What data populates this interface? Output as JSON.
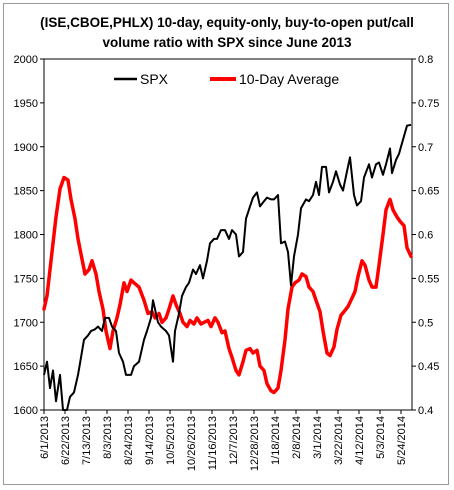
{
  "chart_data": {
    "type": "line",
    "title_lines": [
      "(ISE,CBOE,PHLX) 10-day, equity-only, buy-to-open put/call",
      "volume ratio with SPX since June 2013"
    ],
    "legend": [
      "SPX",
      "10-Day Average"
    ],
    "legend_position": "top",
    "grid": false,
    "colors": {
      "SPX": "#000000",
      "10-Day Average": "#ff0000"
    },
    "y_left": {
      "series": "SPX",
      "range": [
        1600,
        2000
      ],
      "ticks": [
        1600,
        1650,
        1700,
        1750,
        1800,
        1850,
        1900,
        1950,
        2000
      ],
      "tick_labels": [
        "1600",
        "1650",
        "1700",
        "1750",
        "1800",
        "1850",
        "1900",
        "1950",
        "2000"
      ]
    },
    "y_right": {
      "series": "10-Day Average",
      "range": [
        0.4,
        0.8
      ],
      "ticks": [
        0.4,
        0.45,
        0.5,
        0.55,
        0.6,
        0.65,
        0.7,
        0.75,
        0.8
      ],
      "tick_labels": [
        "0.4",
        "0.45",
        "0.5",
        "0.55",
        "0.6",
        "0.65",
        "0.7",
        "0.75",
        "0.8"
      ]
    },
    "x_axis": {
      "start": "6/1/2013",
      "end": "6/4/2014",
      "tick_labels": [
        "6/1/2013",
        "6/22/2013",
        "7/13/2013",
        "8/3/2013",
        "8/24/2013",
        "9/14/2013",
        "10/5/2013",
        "10/26/2013",
        "11/16/2013",
        "12/7/2013",
        "12/28/2013",
        "1/18/2014",
        "2/8/2014",
        "3/1/2014",
        "3/22/2014",
        "4/12/2014",
        "5/3/2014",
        "5/24/2014"
      ]
    },
    "series": [
      {
        "name": "SPX",
        "points": [
          [
            "6/1/2013",
            1640
          ],
          [
            "6/4/2013",
            1655
          ],
          [
            "6/7/2013",
            1625
          ],
          [
            "6/10/2013",
            1645
          ],
          [
            "6/13/2013",
            1610
          ],
          [
            "6/17/2013",
            1640
          ],
          [
            "6/20/2013",
            1600
          ],
          [
            "6/24/2013",
            1600
          ],
          [
            "6/27/2013",
            1615
          ],
          [
            "7/1/2013",
            1620
          ],
          [
            "7/5/2013",
            1640
          ],
          [
            "7/8/2013",
            1660
          ],
          [
            "7/11/2013",
            1680
          ],
          [
            "7/15/2013",
            1685
          ],
          [
            "7/18/2013",
            1690
          ],
          [
            "7/22/2013",
            1692
          ],
          [
            "7/25/2013",
            1695
          ],
          [
            "7/29/2013",
            1690
          ],
          [
            "8/1/2013",
            1705
          ],
          [
            "8/5/2013",
            1705
          ],
          [
            "8/8/2013",
            1695
          ],
          [
            "8/12/2013",
            1690
          ],
          [
            "8/15/2013",
            1665
          ],
          [
            "8/19/2013",
            1655
          ],
          [
            "8/22/2013",
            1640
          ],
          [
            "8/27/2013",
            1640
          ],
          [
            "8/30/2013",
            1650
          ],
          [
            "9/4/2013",
            1655
          ],
          [
            "9/9/2013",
            1680
          ],
          [
            "9/12/2013",
            1690
          ],
          [
            "9/16/2013",
            1705
          ],
          [
            "9/18/2013",
            1725
          ],
          [
            "9/23/2013",
            1700
          ],
          [
            "9/26/2013",
            1695
          ],
          [
            "10/1/2013",
            1690
          ],
          [
            "10/4/2013",
            1685
          ],
          [
            "10/8/2013",
            1655
          ],
          [
            "10/10/2013",
            1690
          ],
          [
            "10/14/2013",
            1710
          ],
          [
            "10/17/2013",
            1730
          ],
          [
            "10/21/2013",
            1740
          ],
          [
            "10/24/2013",
            1745
          ],
          [
            "10/28/2013",
            1760
          ],
          [
            "10/31/2013",
            1755
          ],
          [
            "11/4/2013",
            1765
          ],
          [
            "11/7/2013",
            1750
          ],
          [
            "11/11/2013",
            1770
          ],
          [
            "11/14/2013",
            1790
          ],
          [
            "11/18/2013",
            1795
          ],
          [
            "11/21/2013",
            1795
          ],
          [
            "11/25/2013",
            1805
          ],
          [
            "11/29/2013",
            1805
          ],
          [
            "12/3/2013",
            1795
          ],
          [
            "12/6/2013",
            1805
          ],
          [
            "12/10/2013",
            1800
          ],
          [
            "12/13/2013",
            1775
          ],
          [
            "12/17/2013",
            1780
          ],
          [
            "12/20/2013",
            1818
          ],
          [
            "12/24/2013",
            1832
          ],
          [
            "12/27/2013",
            1842
          ],
          [
            "12/31/2013",
            1848
          ],
          [
            "1/3/2014",
            1832
          ],
          [
            "1/7/2014",
            1838
          ],
          [
            "1/10/2014",
            1842
          ],
          [
            "1/14/2014",
            1840
          ],
          [
            "1/17/2014",
            1840
          ],
          [
            "1/21/2014",
            1845
          ],
          [
            "1/24/2014",
            1790
          ],
          [
            "1/28/2014",
            1792
          ],
          [
            "1/31/2014",
            1780
          ],
          [
            "2/3/2014",
            1742
          ],
          [
            "2/6/2014",
            1775
          ],
          [
            "2/10/2014",
            1800
          ],
          [
            "2/13/2014",
            1830
          ],
          [
            "2/18/2014",
            1840
          ],
          [
            "2/21/2014",
            1838
          ],
          [
            "2/25/2014",
            1845
          ],
          [
            "2/28/2014",
            1860
          ],
          [
            "3/3/2014",
            1845
          ],
          [
            "3/6/2014",
            1877
          ],
          [
            "3/10/2014",
            1877
          ],
          [
            "3/13/2014",
            1848
          ],
          [
            "3/17/2014",
            1860
          ],
          [
            "3/20/2014",
            1872
          ],
          [
            "3/24/2014",
            1857
          ],
          [
            "3/27/2014",
            1850
          ],
          [
            "3/31/2014",
            1872
          ],
          [
            "4/3/2014",
            1888
          ],
          [
            "4/7/2014",
            1845
          ],
          [
            "4/10/2014",
            1833
          ],
          [
            "4/14/2014",
            1838
          ],
          [
            "4/17/2014",
            1865
          ],
          [
            "4/22/2014",
            1880
          ],
          [
            "4/25/2014",
            1865
          ],
          [
            "4/29/2014",
            1880
          ],
          [
            "5/2/2014",
            1882
          ],
          [
            "5/6/2014",
            1868
          ],
          [
            "5/9/2014",
            1880
          ],
          [
            "5/13/2014",
            1898
          ],
          [
            "5/15/2014",
            1870
          ],
          [
            "5/19/2014",
            1885
          ],
          [
            "5/22/2014",
            1892
          ],
          [
            "5/27/2014",
            1912
          ],
          [
            "5/30/2014",
            1924
          ],
          [
            "6/3/2014",
            1925
          ]
        ]
      },
      {
        "name": "10-Day Average",
        "points": [
          [
            "6/1/2013",
            0.515
          ],
          [
            "6/4/2013",
            0.53
          ],
          [
            "6/7/2013",
            0.56
          ],
          [
            "6/10/2013",
            0.59
          ],
          [
            "6/13/2013",
            0.62
          ],
          [
            "6/17/2013",
            0.652
          ],
          [
            "6/21/2013",
            0.665
          ],
          [
            "6/25/2013",
            0.662
          ],
          [
            "6/28/2013",
            0.64
          ],
          [
            "7/2/2013",
            0.618
          ],
          [
            "7/5/2013",
            0.595
          ],
          [
            "7/9/2013",
            0.572
          ],
          [
            "7/12/2013",
            0.555
          ],
          [
            "7/16/2013",
            0.56
          ],
          [
            "7/19/2013",
            0.57
          ],
          [
            "7/23/2013",
            0.555
          ],
          [
            "7/26/2013",
            0.535
          ],
          [
            "7/30/2013",
            0.515
          ],
          [
            "8/2/2013",
            0.49
          ],
          [
            "8/6/2013",
            0.47
          ],
          [
            "8/9/2013",
            0.49
          ],
          [
            "8/13/2013",
            0.505
          ],
          [
            "8/16/2013",
            0.52
          ],
          [
            "8/20/2013",
            0.545
          ],
          [
            "8/23/2013",
            0.535
          ],
          [
            "8/27/2013",
            0.548
          ],
          [
            "8/30/2013",
            0.545
          ],
          [
            "9/4/2013",
            0.54
          ],
          [
            "9/9/2013",
            0.525
          ],
          [
            "9/13/2013",
            0.51
          ],
          [
            "9/17/2013",
            0.512
          ],
          [
            "9/20/2013",
            0.505
          ],
          [
            "9/24/2013",
            0.51
          ],
          [
            "9/27/2013",
            0.5
          ],
          [
            "10/1/2013",
            0.505
          ],
          [
            "10/4/2013",
            0.515
          ],
          [
            "10/8/2013",
            0.53
          ],
          [
            "10/11/2013",
            0.52
          ],
          [
            "10/15/2013",
            0.51
          ],
          [
            "10/18/2013",
            0.5
          ],
          [
            "10/22/2013",
            0.495
          ],
          [
            "10/25/2013",
            0.502
          ],
          [
            "10/29/2013",
            0.498
          ],
          [
            "11/1/2013",
            0.505
          ],
          [
            "11/5/2013",
            0.498
          ],
          [
            "11/8/2013",
            0.5
          ],
          [
            "11/12/2013",
            0.502
          ],
          [
            "11/15/2013",
            0.495
          ],
          [
            "11/19/2013",
            0.505
          ],
          [
            "11/22/2013",
            0.5
          ],
          [
            "11/26/2013",
            0.488
          ],
          [
            "11/29/2013",
            0.49
          ],
          [
            "12/3/2013",
            0.47
          ],
          [
            "12/6/2013",
            0.46
          ],
          [
            "12/10/2013",
            0.445
          ],
          [
            "12/13/2013",
            0.44
          ],
          [
            "12/17/2013",
            0.455
          ],
          [
            "12/20/2013",
            0.468
          ],
          [
            "12/24/2013",
            0.47
          ],
          [
            "12/27/2013",
            0.465
          ],
          [
            "12/31/2013",
            0.468
          ],
          [
            "1/3/2014",
            0.45
          ],
          [
            "1/7/2014",
            0.445
          ],
          [
            "1/10/2014",
            0.43
          ],
          [
            "1/14/2014",
            0.422
          ],
          [
            "1/17/2014",
            0.42
          ],
          [
            "1/21/2014",
            0.425
          ],
          [
            "1/24/2014",
            0.445
          ],
          [
            "1/28/2014",
            0.48
          ],
          [
            "1/31/2014",
            0.515
          ],
          [
            "2/4/2014",
            0.54
          ],
          [
            "2/7/2014",
            0.545
          ],
          [
            "2/11/2014",
            0.548
          ],
          [
            "2/14/2014",
            0.555
          ],
          [
            "2/18/2014",
            0.552
          ],
          [
            "2/21/2014",
            0.54
          ],
          [
            "2/25/2014",
            0.535
          ],
          [
            "2/28/2014",
            0.525
          ],
          [
            "3/4/2014",
            0.512
          ],
          [
            "3/7/2014",
            0.49
          ],
          [
            "3/11/2014",
            0.465
          ],
          [
            "3/14/2014",
            0.462
          ],
          [
            "3/18/2014",
            0.472
          ],
          [
            "3/21/2014",
            0.492
          ],
          [
            "3/25/2014",
            0.508
          ],
          [
            "3/28/2014",
            0.512
          ],
          [
            "4/1/2014",
            0.518
          ],
          [
            "4/4/2014",
            0.525
          ],
          [
            "4/8/2014",
            0.535
          ],
          [
            "4/11/2014",
            0.552
          ],
          [
            "4/15/2014",
            0.57
          ],
          [
            "4/18/2014",
            0.565
          ],
          [
            "4/22/2014",
            0.548
          ],
          [
            "4/25/2014",
            0.54
          ],
          [
            "4/29/2014",
            0.54
          ],
          [
            "5/2/2014",
            0.565
          ],
          [
            "5/6/2014",
            0.6
          ],
          [
            "5/9/2014",
            0.628
          ],
          [
            "5/13/2014",
            0.64
          ],
          [
            "5/16/2014",
            0.628
          ],
          [
            "5/20/2014",
            0.62
          ],
          [
            "5/23/2014",
            0.615
          ],
          [
            "5/27/2014",
            0.61
          ],
          [
            "5/30/2014",
            0.585
          ],
          [
            "6/3/2014",
            0.575
          ]
        ]
      }
    ]
  }
}
